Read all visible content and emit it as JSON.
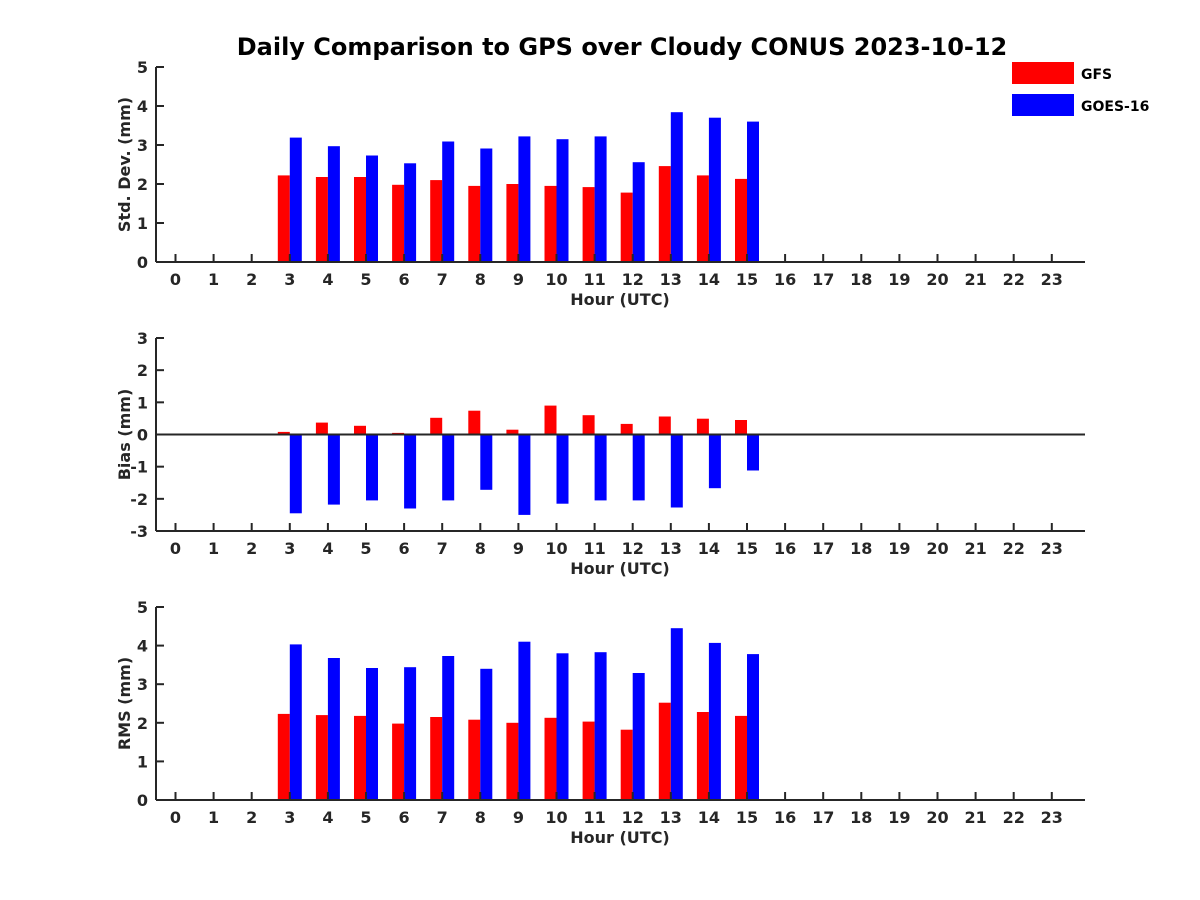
{
  "figure": {
    "title": "Daily Comparison to GPS over Cloudy CONUS 2023-10-12"
  },
  "legend": {
    "placement": "top-right",
    "items": [
      {
        "label": "GFS",
        "color": "#ff0000"
      },
      {
        "label": "GOES-16",
        "color": "#0000ff"
      }
    ]
  },
  "chart_data": [
    {
      "type": "bar",
      "ylabel": "Std. Dev. (mm)",
      "xlabel": "Hour (UTC)",
      "ylim": [
        0,
        5
      ],
      "yticks": [
        0,
        1,
        2,
        3,
        4,
        5
      ],
      "xticks": [
        "0",
        "1",
        "2",
        "3",
        "4",
        "5",
        "6",
        "7",
        "8",
        "9",
        "10",
        "11",
        "12",
        "13",
        "14",
        "15",
        "16",
        "17",
        "18",
        "19",
        "20",
        "21",
        "22",
        "23"
      ],
      "categories": [
        3,
        4,
        5,
        6,
        7,
        8,
        9,
        10,
        11,
        12,
        13,
        14,
        15
      ],
      "series": [
        {
          "name": "GFS",
          "color": "#ff0000",
          "values": [
            2.22,
            2.18,
            2.18,
            1.98,
            2.1,
            1.95,
            2.0,
            1.95,
            1.92,
            1.78,
            2.46,
            2.22,
            2.13
          ]
        },
        {
          "name": "GOES-16",
          "color": "#0000ff",
          "values": [
            3.19,
            2.97,
            2.73,
            2.53,
            3.09,
            2.91,
            3.22,
            3.15,
            3.22,
            2.56,
            3.84,
            3.7,
            3.6
          ]
        }
      ]
    },
    {
      "type": "bar",
      "ylabel": "Bias (mm)",
      "xlabel": "Hour (UTC)",
      "ylim": [
        -3,
        3
      ],
      "yticks": [
        -3,
        -2,
        -1,
        0,
        1,
        2,
        3
      ],
      "zero_line": true,
      "xticks": [
        "0",
        "1",
        "2",
        "3",
        "4",
        "5",
        "6",
        "7",
        "8",
        "9",
        "10",
        "11",
        "12",
        "13",
        "14",
        "15",
        "16",
        "17",
        "18",
        "19",
        "20",
        "21",
        "22",
        "23"
      ],
      "categories": [
        3,
        4,
        5,
        6,
        7,
        8,
        9,
        10,
        11,
        12,
        13,
        14,
        15
      ],
      "series": [
        {
          "name": "GFS",
          "color": "#ff0000",
          "values": [
            0.08,
            0.37,
            0.27,
            0.05,
            0.52,
            0.74,
            0.15,
            0.9,
            0.6,
            0.33,
            0.56,
            0.49,
            0.45
          ]
        },
        {
          "name": "GOES-16",
          "color": "#0000ff",
          "values": [
            -2.45,
            -2.18,
            -2.05,
            -2.3,
            -2.05,
            -1.72,
            -2.5,
            -2.15,
            -2.05,
            -2.05,
            -2.27,
            -1.67,
            -1.12
          ]
        }
      ]
    },
    {
      "type": "bar",
      "ylabel": "RMS (mm)",
      "xlabel": "Hour (UTC)",
      "ylim": [
        0,
        5
      ],
      "yticks": [
        0,
        1,
        2,
        3,
        4,
        5
      ],
      "xticks": [
        "0",
        "1",
        "2",
        "3",
        "4",
        "5",
        "6",
        "7",
        "8",
        "9",
        "10",
        "11",
        "12",
        "13",
        "14",
        "15",
        "16",
        "17",
        "18",
        "19",
        "20",
        "21",
        "22",
        "23"
      ],
      "categories": [
        3,
        4,
        5,
        6,
        7,
        8,
        9,
        10,
        11,
        12,
        13,
        14,
        15
      ],
      "series": [
        {
          "name": "GFS",
          "color": "#ff0000",
          "values": [
            2.23,
            2.2,
            2.18,
            1.98,
            2.15,
            2.08,
            2.0,
            2.13,
            2.03,
            1.82,
            2.52,
            2.28,
            2.18
          ]
        },
        {
          "name": "GOES-16",
          "color": "#0000ff",
          "values": [
            4.03,
            3.68,
            3.42,
            3.44,
            3.73,
            3.4,
            4.1,
            3.8,
            3.83,
            3.29,
            4.45,
            4.07,
            3.78
          ]
        }
      ]
    }
  ]
}
